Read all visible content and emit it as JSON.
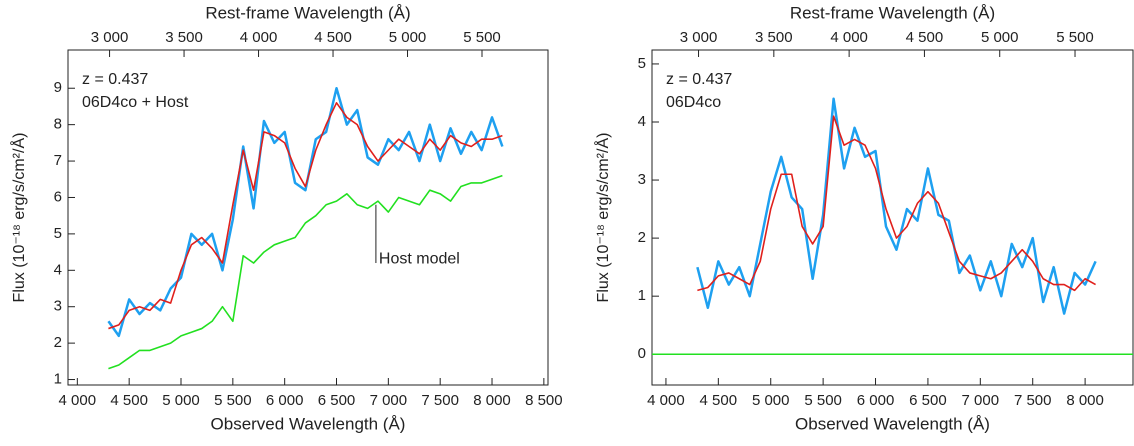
{
  "chart_data": [
    {
      "type": "line",
      "xlabel": "Observed Wavelength (Å)",
      "x2label": "Rest-frame Wavelength (Å)",
      "ylabel": "Flux (10⁻¹⁸ erg/s/cm²/Å)",
      "annotations": [
        "z = 0.437",
        "06D4co + Host",
        "Host model"
      ],
      "x": [
        4300,
        4400,
        4500,
        4600,
        4700,
        4800,
        4900,
        5000,
        5100,
        5200,
        5300,
        5400,
        5500,
        5600,
        5700,
        5800,
        5900,
        6000,
        6100,
        6200,
        6300,
        6400,
        6500,
        6600,
        6700,
        6800,
        6900,
        7000,
        7100,
        7200,
        7300,
        7400,
        7500,
        7600,
        7700,
        7800,
        7900,
        8000,
        8100
      ],
      "series": [
        {
          "name": "06D4co + Host",
          "color": "#1ea0f0",
          "values": [
            2.6,
            2.2,
            3.2,
            2.8,
            3.1,
            2.9,
            3.5,
            3.8,
            5.0,
            4.7,
            5.0,
            4.0,
            5.4,
            7.4,
            5.7,
            8.1,
            7.5,
            7.8,
            6.4,
            6.2,
            7.6,
            7.8,
            9.0,
            8.0,
            8.4,
            7.1,
            6.9,
            7.6,
            7.3,
            7.8,
            7.0,
            8.0,
            7.0,
            7.9,
            7.2,
            7.8,
            7.3,
            8.2,
            7.4
          ]
        },
        {
          "name": "Fit",
          "color": "#e0201c",
          "values": [
            2.4,
            2.5,
            2.9,
            3.0,
            2.9,
            3.2,
            3.1,
            4.0,
            4.7,
            4.9,
            4.6,
            4.2,
            5.8,
            7.3,
            6.2,
            7.8,
            7.7,
            7.5,
            6.8,
            6.3,
            7.3,
            8.0,
            8.6,
            8.2,
            8.0,
            7.4,
            7.0,
            7.3,
            7.6,
            7.4,
            7.2,
            7.6,
            7.3,
            7.7,
            7.5,
            7.4,
            7.6,
            7.6,
            7.7
          ]
        },
        {
          "name": "Host model",
          "color": "#22e020",
          "values": [
            1.3,
            1.4,
            1.6,
            1.8,
            1.8,
            1.9,
            2.0,
            2.2,
            2.3,
            2.4,
            2.6,
            3.0,
            2.6,
            4.4,
            4.2,
            4.5,
            4.7,
            4.8,
            4.9,
            5.3,
            5.5,
            5.8,
            5.9,
            6.1,
            5.8,
            5.7,
            5.9,
            5.6,
            6.0,
            5.9,
            5.8,
            6.2,
            6.1,
            5.9,
            6.3,
            6.4,
            6.4,
            6.5,
            6.6
          ]
        }
      ],
      "xlim": [
        3910,
        8540
      ],
      "xticks": [
        {
          "value": 4000,
          "label": "4 000"
        },
        {
          "value": 4500,
          "label": "4 500"
        },
        {
          "value": 5000,
          "label": "5 000"
        },
        {
          "value": 5500,
          "label": "5 500"
        },
        {
          "value": 6000,
          "label": "6 000"
        },
        {
          "value": 6500,
          "label": "6 500"
        },
        {
          "value": 7000,
          "label": "7 000"
        },
        {
          "value": 7500,
          "label": "7 500"
        },
        {
          "value": 8000,
          "label": "8 000"
        },
        {
          "value": 8500,
          "label": "8 500"
        }
      ],
      "x2lim": [
        2721,
        5943
      ],
      "x2ticks": [
        {
          "value": 3000,
          "label": "3 000"
        },
        {
          "value": 3500,
          "label": "3 500"
        },
        {
          "value": 4000,
          "label": "4 000"
        },
        {
          "value": 4500,
          "label": "4 500"
        },
        {
          "value": 5000,
          "label": "5 000"
        },
        {
          "value": 5500,
          "label": "5 500"
        }
      ],
      "ylim": [
        0.85,
        10.05
      ],
      "yticks": [
        1,
        2,
        3,
        4,
        5,
        6,
        7,
        8,
        9
      ]
    },
    {
      "type": "line",
      "xlabel": "Observed Wavelength (Å)",
      "x2label": "Rest-frame Wavelength (Å)",
      "ylabel": "Flux (10⁻¹⁸ erg/s/cm²/Å)",
      "annotations": [
        "z = 0.437",
        "06D4co"
      ],
      "x": [
        4300,
        4400,
        4500,
        4600,
        4700,
        4800,
        4900,
        5000,
        5100,
        5200,
        5300,
        5400,
        5500,
        5600,
        5700,
        5800,
        5900,
        6000,
        6100,
        6200,
        6300,
        6400,
        6500,
        6600,
        6700,
        6800,
        6900,
        7000,
        7100,
        7200,
        7300,
        7400,
        7500,
        7600,
        7700,
        7800,
        7900,
        8000,
        8100
      ],
      "series": [
        {
          "name": "06D4co",
          "color": "#1ea0f0",
          "values": [
            1.5,
            0.8,
            1.6,
            1.2,
            1.5,
            1.0,
            1.9,
            2.8,
            3.4,
            2.7,
            2.5,
            1.3,
            2.4,
            4.4,
            3.2,
            3.9,
            3.4,
            3.5,
            2.2,
            1.8,
            2.5,
            2.3,
            3.2,
            2.4,
            2.3,
            1.4,
            1.7,
            1.1,
            1.6,
            1.0,
            1.9,
            1.5,
            2.0,
            0.9,
            1.5,
            0.7,
            1.4,
            1.2,
            1.6
          ]
        },
        {
          "name": "Fit",
          "color": "#e0201c",
          "values": [
            1.1,
            1.15,
            1.35,
            1.4,
            1.3,
            1.2,
            1.6,
            2.5,
            3.1,
            3.1,
            2.2,
            1.9,
            2.2,
            4.1,
            3.6,
            3.7,
            3.6,
            3.2,
            2.5,
            2.0,
            2.2,
            2.6,
            2.8,
            2.6,
            2.1,
            1.6,
            1.4,
            1.35,
            1.3,
            1.4,
            1.6,
            1.8,
            1.6,
            1.3,
            1.2,
            1.2,
            1.1,
            1.3,
            1.2
          ]
        }
      ],
      "hline": {
        "value": 0,
        "color": "#22e020"
      },
      "xlim": [
        3867,
        8457
      ],
      "xticks": [
        {
          "value": 4000,
          "label": "4 000"
        },
        {
          "value": 4500,
          "label": "4 500"
        },
        {
          "value": 5000,
          "label": "5 000"
        },
        {
          "value": 5500,
          "label": "5 500"
        },
        {
          "value": 6000,
          "label": "6 000"
        },
        {
          "value": 6500,
          "label": "6 500"
        },
        {
          "value": 7000,
          "label": "7 000"
        },
        {
          "value": 7500,
          "label": "7 500"
        },
        {
          "value": 8000,
          "label": "8 000"
        }
      ],
      "x2lim": [
        2691,
        5885
      ],
      "x2ticks": [
        {
          "value": 3000,
          "label": "3 000"
        },
        {
          "value": 3500,
          "label": "3 500"
        },
        {
          "value": 4000,
          "label": "4 000"
        },
        {
          "value": 4500,
          "label": "4 500"
        },
        {
          "value": 5000,
          "label": "5 000"
        },
        {
          "value": 5500,
          "label": "5 500"
        }
      ],
      "ylim": [
        -0.53,
        5.24
      ],
      "yticks": [
        0,
        1,
        2,
        3,
        4,
        5
      ]
    }
  ]
}
